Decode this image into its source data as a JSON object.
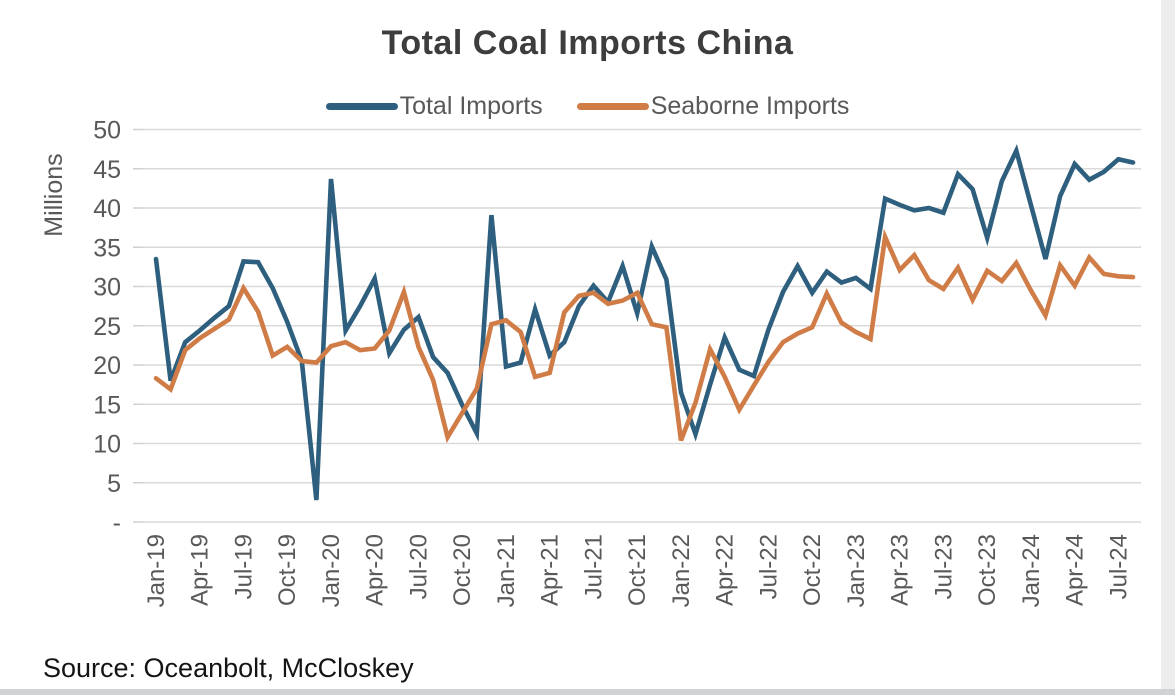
{
  "title": "Total Coal Imports China",
  "y_axis_label": "Millions",
  "source_note": "Source: Oceanbolt, McCloskey",
  "legend": {
    "items": [
      {
        "label": "Total Imports",
        "color": "#2E5F7E"
      },
      {
        "label": "Seaborne Imports",
        "color": "#D07C47"
      }
    ]
  },
  "chart_data": {
    "type": "line",
    "title": "Total Coal Imports China",
    "xlabel": "",
    "ylabel": "Millions",
    "ylim": [
      0,
      50
    ],
    "y_tick_step": 5,
    "grid": true,
    "legend_position": "top",
    "y_tick_labels": [
      "-",
      "5",
      "10",
      "15",
      "20",
      "25",
      "30",
      "35",
      "40",
      "45",
      "50"
    ],
    "x_tick_labels": [
      "Jan-19",
      "Apr-19",
      "Jul-19",
      "Oct-19",
      "Jan-20",
      "Apr-20",
      "Jul-20",
      "Oct-20",
      "Jan-21",
      "Apr-21",
      "Jul-21",
      "Oct-21",
      "Jan-22",
      "Apr-22",
      "Jul-22",
      "Oct-22",
      "Jan-23",
      "Apr-23",
      "Jul-23",
      "Oct-23",
      "Jan-24",
      "Apr-24",
      "Jul-24"
    ],
    "x": [
      "Jan-19",
      "Feb-19",
      "Mar-19",
      "Apr-19",
      "May-19",
      "Jun-19",
      "Jul-19",
      "Aug-19",
      "Sep-19",
      "Oct-19",
      "Nov-19",
      "Dec-19",
      "Jan-20",
      "Feb-20",
      "Mar-20",
      "Apr-20",
      "May-20",
      "Jun-20",
      "Jul-20",
      "Aug-20",
      "Sep-20",
      "Oct-20",
      "Nov-20",
      "Dec-20",
      "Jan-21",
      "Feb-21",
      "Mar-21",
      "Apr-21",
      "May-21",
      "Jun-21",
      "Jul-21",
      "Aug-21",
      "Sep-21",
      "Oct-21",
      "Nov-21",
      "Dec-21",
      "Jan-22",
      "Feb-22",
      "Mar-22",
      "Apr-22",
      "May-22",
      "Jun-22",
      "Jul-22",
      "Aug-22",
      "Sep-22",
      "Oct-22",
      "Nov-22",
      "Dec-22",
      "Jan-23",
      "Feb-23",
      "Mar-23",
      "Apr-23",
      "May-23",
      "Jun-23",
      "Jul-23",
      "Aug-23",
      "Sep-23",
      "Oct-23",
      "Nov-23",
      "Dec-23",
      "Jan-24",
      "Feb-24",
      "Mar-24",
      "Apr-24",
      "May-24",
      "Jun-24",
      "Jul-24",
      "Aug-24"
    ],
    "series": [
      {
        "name": "Total Imports",
        "color": "#2E5F7E",
        "values": [
          33.5,
          18.0,
          22.9,
          24.4,
          26.0,
          27.5,
          33.2,
          33.1,
          29.8,
          25.5,
          20.5,
          2.8,
          43.7,
          24.4,
          27.5,
          31.0,
          21.5,
          24.5,
          26.1,
          21.0,
          19.0,
          14.9,
          11.3,
          39.1,
          19.8,
          20.3,
          27.1,
          21.2,
          22.9,
          27.5,
          30.1,
          28.0,
          32.6,
          26.6,
          35.1,
          30.9,
          16.5,
          11.2,
          17.5,
          23.5,
          19.4,
          18.6,
          24.5,
          29.3,
          32.6,
          29.2,
          31.9,
          30.5,
          31.1,
          29.7,
          41.2,
          40.4,
          39.7,
          40.0,
          39.4,
          44.3,
          42.4,
          36.2,
          43.4,
          47.3,
          40.4,
          33.5,
          41.5,
          45.6,
          43.6,
          44.6,
          46.2,
          45.8
        ]
      },
      {
        "name": "Seaborne Imports",
        "color": "#D07C47",
        "values": [
          18.3,
          16.9,
          21.9,
          23.4,
          24.6,
          25.8,
          29.8,
          26.8,
          21.2,
          22.3,
          20.5,
          20.3,
          22.4,
          22.9,
          21.9,
          22.1,
          24.4,
          29.3,
          22.3,
          18.1,
          10.8,
          13.9,
          17.0,
          25.2,
          25.7,
          24.2,
          18.5,
          19.0,
          26.7,
          28.8,
          29.2,
          27.8,
          28.2,
          29.2,
          25.2,
          24.8,
          10.4,
          15.2,
          22.0,
          18.5,
          14.3,
          17.4,
          20.4,
          22.9,
          24.0,
          24.8,
          29.1,
          25.4,
          24.2,
          23.3,
          36.3,
          32.1,
          34.0,
          30.8,
          29.7,
          32.4,
          28.3,
          32.0,
          30.7,
          33.0,
          29.5,
          26.3,
          32.7,
          30.1,
          33.7,
          31.6,
          31.3,
          31.2
        ]
      }
    ]
  }
}
